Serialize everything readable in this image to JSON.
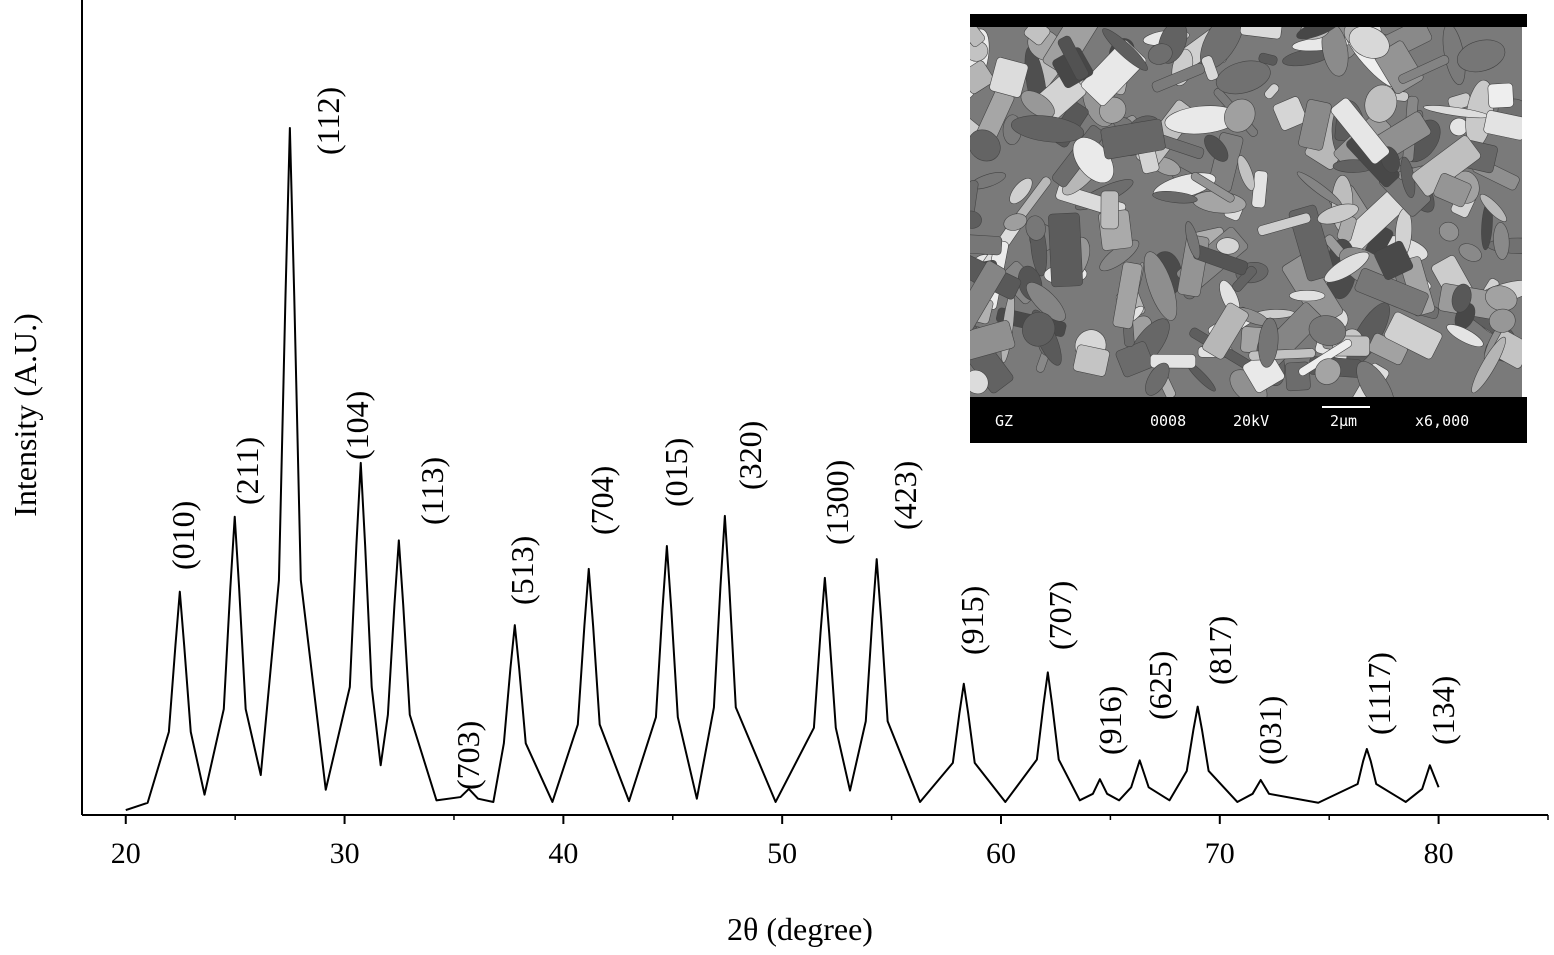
{
  "chart_data": {
    "type": "line",
    "xlabel": "2θ (degree)",
    "ylabel": "Intensity (A.U.)",
    "color": "#000000",
    "xlim": [
      18,
      85
    ],
    "ylim": [
      0,
      100
    ],
    "xticks": [
      20,
      30,
      40,
      50,
      60,
      70,
      80
    ],
    "xminorticks": [
      25,
      35,
      45,
      55,
      65,
      75,
      85
    ],
    "x": [
      20.0,
      21.0,
      21.97,
      22.27,
      22.47,
      22.67,
      22.97,
      23.6,
      24.48,
      24.78,
      24.98,
      25.18,
      25.48,
      26.17,
      27.0,
      27.3,
      27.5,
      27.7,
      28.0,
      29.14,
      30.24,
      30.54,
      30.74,
      30.94,
      31.24,
      31.65,
      31.98,
      32.28,
      32.48,
      32.68,
      32.98,
      34.2,
      35.3,
      35.68,
      36.1,
      36.8,
      37.28,
      37.58,
      37.78,
      37.98,
      38.28,
      39.5,
      40.66,
      40.96,
      41.16,
      41.36,
      41.66,
      43.0,
      44.23,
      44.53,
      44.73,
      44.93,
      45.23,
      46.1,
      46.88,
      47.18,
      47.38,
      47.58,
      47.88,
      49.7,
      51.45,
      51.75,
      51.95,
      52.15,
      52.45,
      53.1,
      53.82,
      54.12,
      54.32,
      54.52,
      54.82,
      56.3,
      57.8,
      58.1,
      58.3,
      58.5,
      58.8,
      60.2,
      61.64,
      61.94,
      62.14,
      62.34,
      62.64,
      63.6,
      64.2,
      64.52,
      64.85,
      65.4,
      65.95,
      66.34,
      66.75,
      67.7,
      68.49,
      68.79,
      68.99,
      69.19,
      69.49,
      70.8,
      71.5,
      71.87,
      72.25,
      74.5,
      76.3,
      76.55,
      76.72,
      76.9,
      77.15,
      78.5,
      79.25,
      79.6,
      80.0
    ],
    "values": [
      0.6,
      1.5,
      10.2,
      20.8,
      27.4,
      20.8,
      10.2,
      2.5,
      13.0,
      27.9,
      36.6,
      27.9,
      13.0,
      4.9,
      28.8,
      63.7,
      84.3,
      63.7,
      28.8,
      3.1,
      15.7,
      33.1,
      43.2,
      33.1,
      15.7,
      6.1,
      12.3,
      25.8,
      33.7,
      25.8,
      12.3,
      1.8,
      2.2,
      3.2,
      2.0,
      1.6,
      8.8,
      18.0,
      23.3,
      18.0,
      8.8,
      1.6,
      11.1,
      23.2,
      30.2,
      23.2,
      11.1,
      1.7,
      12.0,
      25.3,
      33.0,
      25.3,
      12.0,
      2.0,
      13.2,
      28.1,
      36.7,
      28.1,
      13.2,
      1.6,
      10.7,
      22.3,
      29.1,
      22.3,
      10.7,
      3.0,
      11.5,
      24.1,
      31.4,
      24.1,
      11.5,
      1.6,
      6.4,
      12.5,
      16.1,
      12.5,
      6.4,
      1.6,
      6.8,
      13.5,
      17.5,
      13.5,
      6.8,
      1.8,
      2.6,
      4.4,
      2.6,
      1.8,
      3.4,
      6.7,
      3.4,
      1.8,
      5.4,
      10.4,
      13.3,
      10.4,
      5.4,
      1.6,
      2.6,
      4.3,
      2.6,
      1.5,
      3.8,
      6.6,
      8.1,
      6.6,
      3.8,
      1.6,
      3.2,
      6.1,
      3.4
    ],
    "annotations": [
      "(010)",
      "(211)",
      "(112)",
      "(104)",
      "(113)",
      "(703)",
      "(513)",
      "(704)",
      "(015)",
      "(320)",
      "(1300)",
      "(423)",
      "(915)",
      "(707)",
      "(916)",
      "(625)",
      "(817)",
      "(031)",
      "(1117)",
      "(134)"
    ],
    "inset_labels": [
      "GZ",
      "0008",
      "20kV",
      "2μm",
      "x6,000"
    ]
  }
}
